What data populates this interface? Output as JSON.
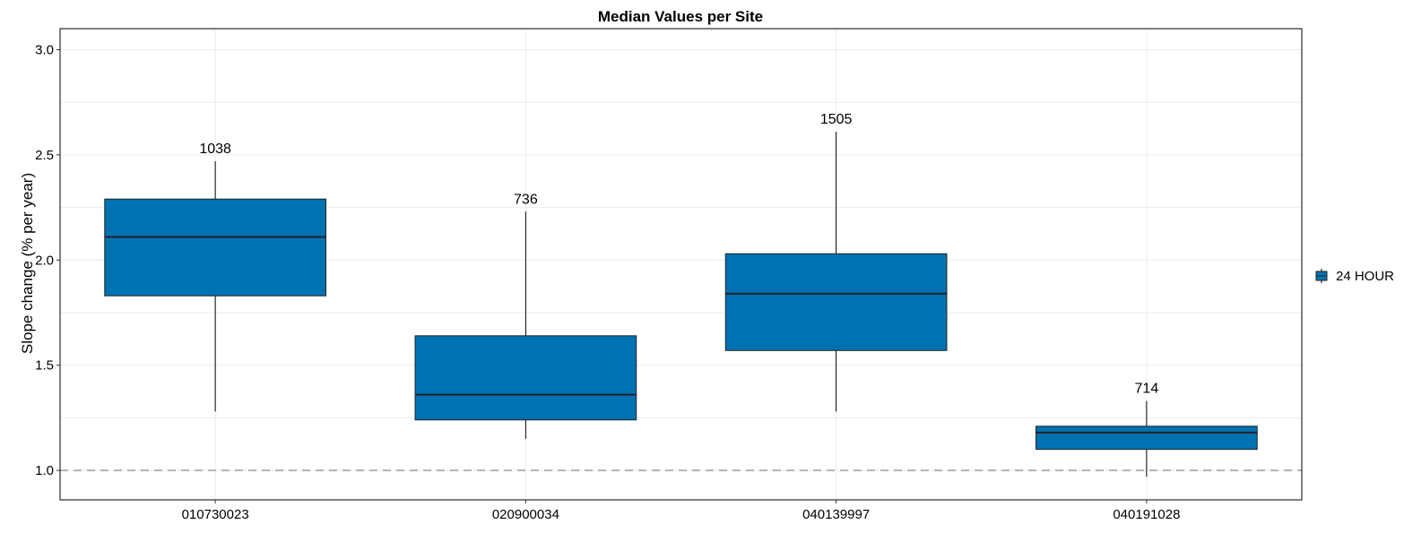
{
  "chart_data": {
    "type": "box",
    "title": "Median Values per Site",
    "xlabel": "",
    "ylabel": "Slope change (% per year)",
    "ylim": [
      0.86,
      3.1
    ],
    "yticks": [
      1.0,
      1.5,
      2.0,
      2.5,
      3.0
    ],
    "ytick_labels": [
      "1.0",
      "1.5",
      "2.0",
      "2.5",
      "3.0"
    ],
    "reference_line": 1.0,
    "grid": true,
    "legend": {
      "position": "right",
      "entries": [
        "24 HOUR"
      ]
    },
    "series": [
      {
        "name": "24 HOUR",
        "color": "#0072B2",
        "boxes": [
          {
            "category": "010730023",
            "whisker_low": 1.28,
            "q1": 1.83,
            "median": 2.11,
            "q3": 2.29,
            "whisker_high": 2.47,
            "count_label": "1038"
          },
          {
            "category": "020900034",
            "whisker_low": 1.15,
            "q1": 1.24,
            "median": 1.36,
            "q3": 1.64,
            "whisker_high": 2.23,
            "count_label": "736"
          },
          {
            "category": "040139997",
            "whisker_low": 1.28,
            "q1": 1.57,
            "median": 1.84,
            "q3": 2.03,
            "whisker_high": 2.61,
            "count_label": "1505"
          },
          {
            "category": "040191028",
            "whisker_low": 0.97,
            "q1": 1.1,
            "median": 1.18,
            "q3": 1.21,
            "whisker_high": 1.33,
            "count_label": "714"
          }
        ]
      }
    ]
  }
}
